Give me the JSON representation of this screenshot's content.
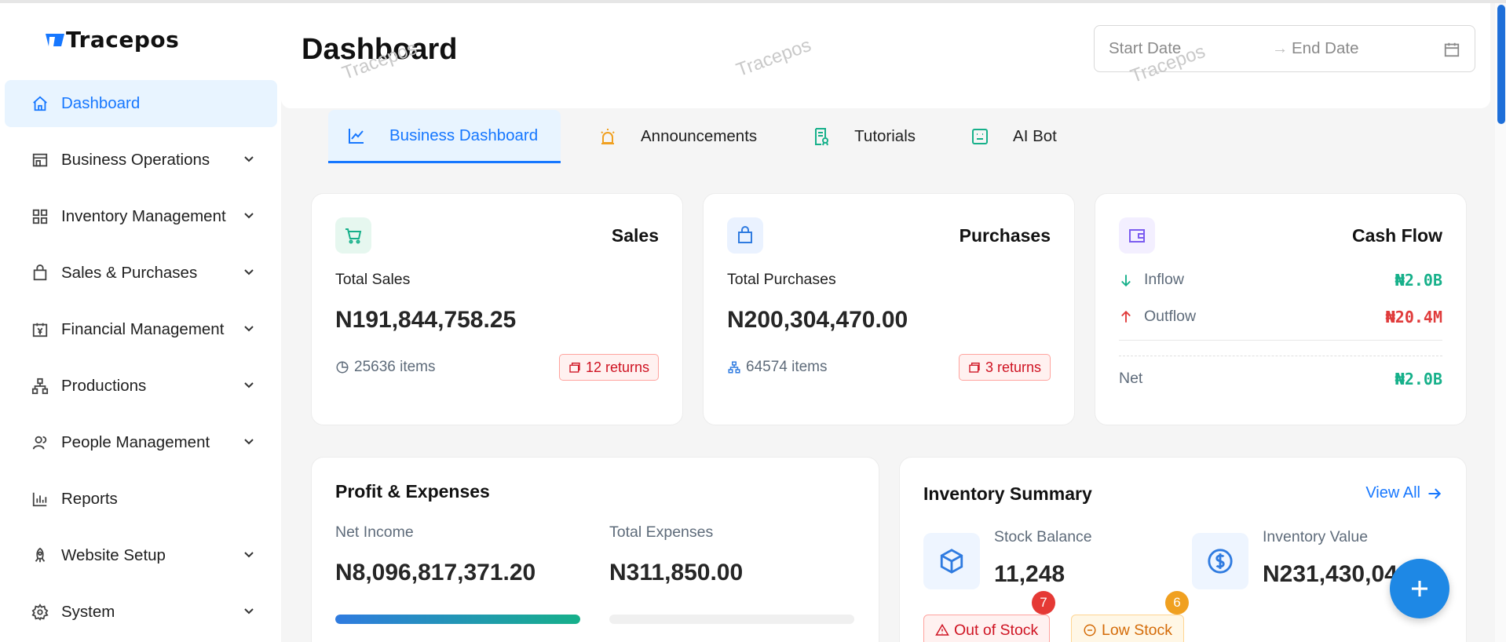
{
  "app": {
    "logo_text": "Tracepos"
  },
  "sidebar": {
    "items": [
      {
        "label": "Dashboard",
        "icon": "home-icon",
        "active": true
      },
      {
        "label": "Business Operations",
        "icon": "store-icon"
      },
      {
        "label": "Inventory Management",
        "icon": "grid-icon"
      },
      {
        "label": "Sales & Purchases",
        "icon": "bag-icon"
      },
      {
        "label": "Financial Management",
        "icon": "yen-calendar-icon"
      },
      {
        "label": "Productions",
        "icon": "hierarchy-icon"
      },
      {
        "label": "People Management",
        "icon": "people-icon"
      },
      {
        "label": "Reports",
        "icon": "bar-chart-icon"
      },
      {
        "label": "Website Setup",
        "icon": "rocket-icon"
      },
      {
        "label": "System",
        "icon": "gear-icon"
      }
    ]
  },
  "header": {
    "title": "Dashboard",
    "watermark": "Tracepos",
    "date_range": {
      "start_placeholder": "Start Date",
      "arrow": "→",
      "end_placeholder": "End Date"
    }
  },
  "tabs": [
    {
      "label": "Business Dashboard",
      "icon": "line-chart-icon",
      "active": true
    },
    {
      "label": "Announcements",
      "icon": "alarm-icon"
    },
    {
      "label": "Tutorials",
      "icon": "document-icon"
    },
    {
      "label": "AI Bot",
      "icon": "robot-icon"
    }
  ],
  "sales": {
    "title": "Sales",
    "label": "Total Sales",
    "amount": "N191,844,758.25",
    "items": "25636 items",
    "returns": "12 returns"
  },
  "purchases": {
    "title": "Purchases",
    "label": "Total Purchases",
    "amount": "N200,304,470.00",
    "items": "64574 items",
    "returns": "3 returns"
  },
  "cashflow": {
    "title": "Cash Flow",
    "inflow_label": "Inflow",
    "inflow_value": "₦2.0B",
    "outflow_label": "Outflow",
    "outflow_value": "₦20.4M",
    "net_label": "Net",
    "net_value": "₦2.0B"
  },
  "profit": {
    "title": "Profit & Expenses",
    "net_income_label": "Net Income",
    "net_income": "N8,096,817,371.20",
    "expenses_label": "Total Expenses",
    "expenses": "N311,850.00",
    "net_income_progress": 1.0,
    "expenses_progress": 0.0
  },
  "inventory": {
    "title": "Inventory Summary",
    "view_all": "View All",
    "stock_balance_label": "Stock Balance",
    "stock_balance": "11,248",
    "inventory_value_label": "Inventory Value",
    "inventory_value": "N231,430,04",
    "out_of_stock_label": "Out of Stock",
    "out_of_stock_count": "7",
    "low_stock_label": "Low Stock",
    "low_stock_count": "6"
  },
  "colors": {
    "primary": "#1677ff",
    "positive": "#16b08a",
    "negative": "#e03b3b",
    "fab": "#1e88e5"
  }
}
